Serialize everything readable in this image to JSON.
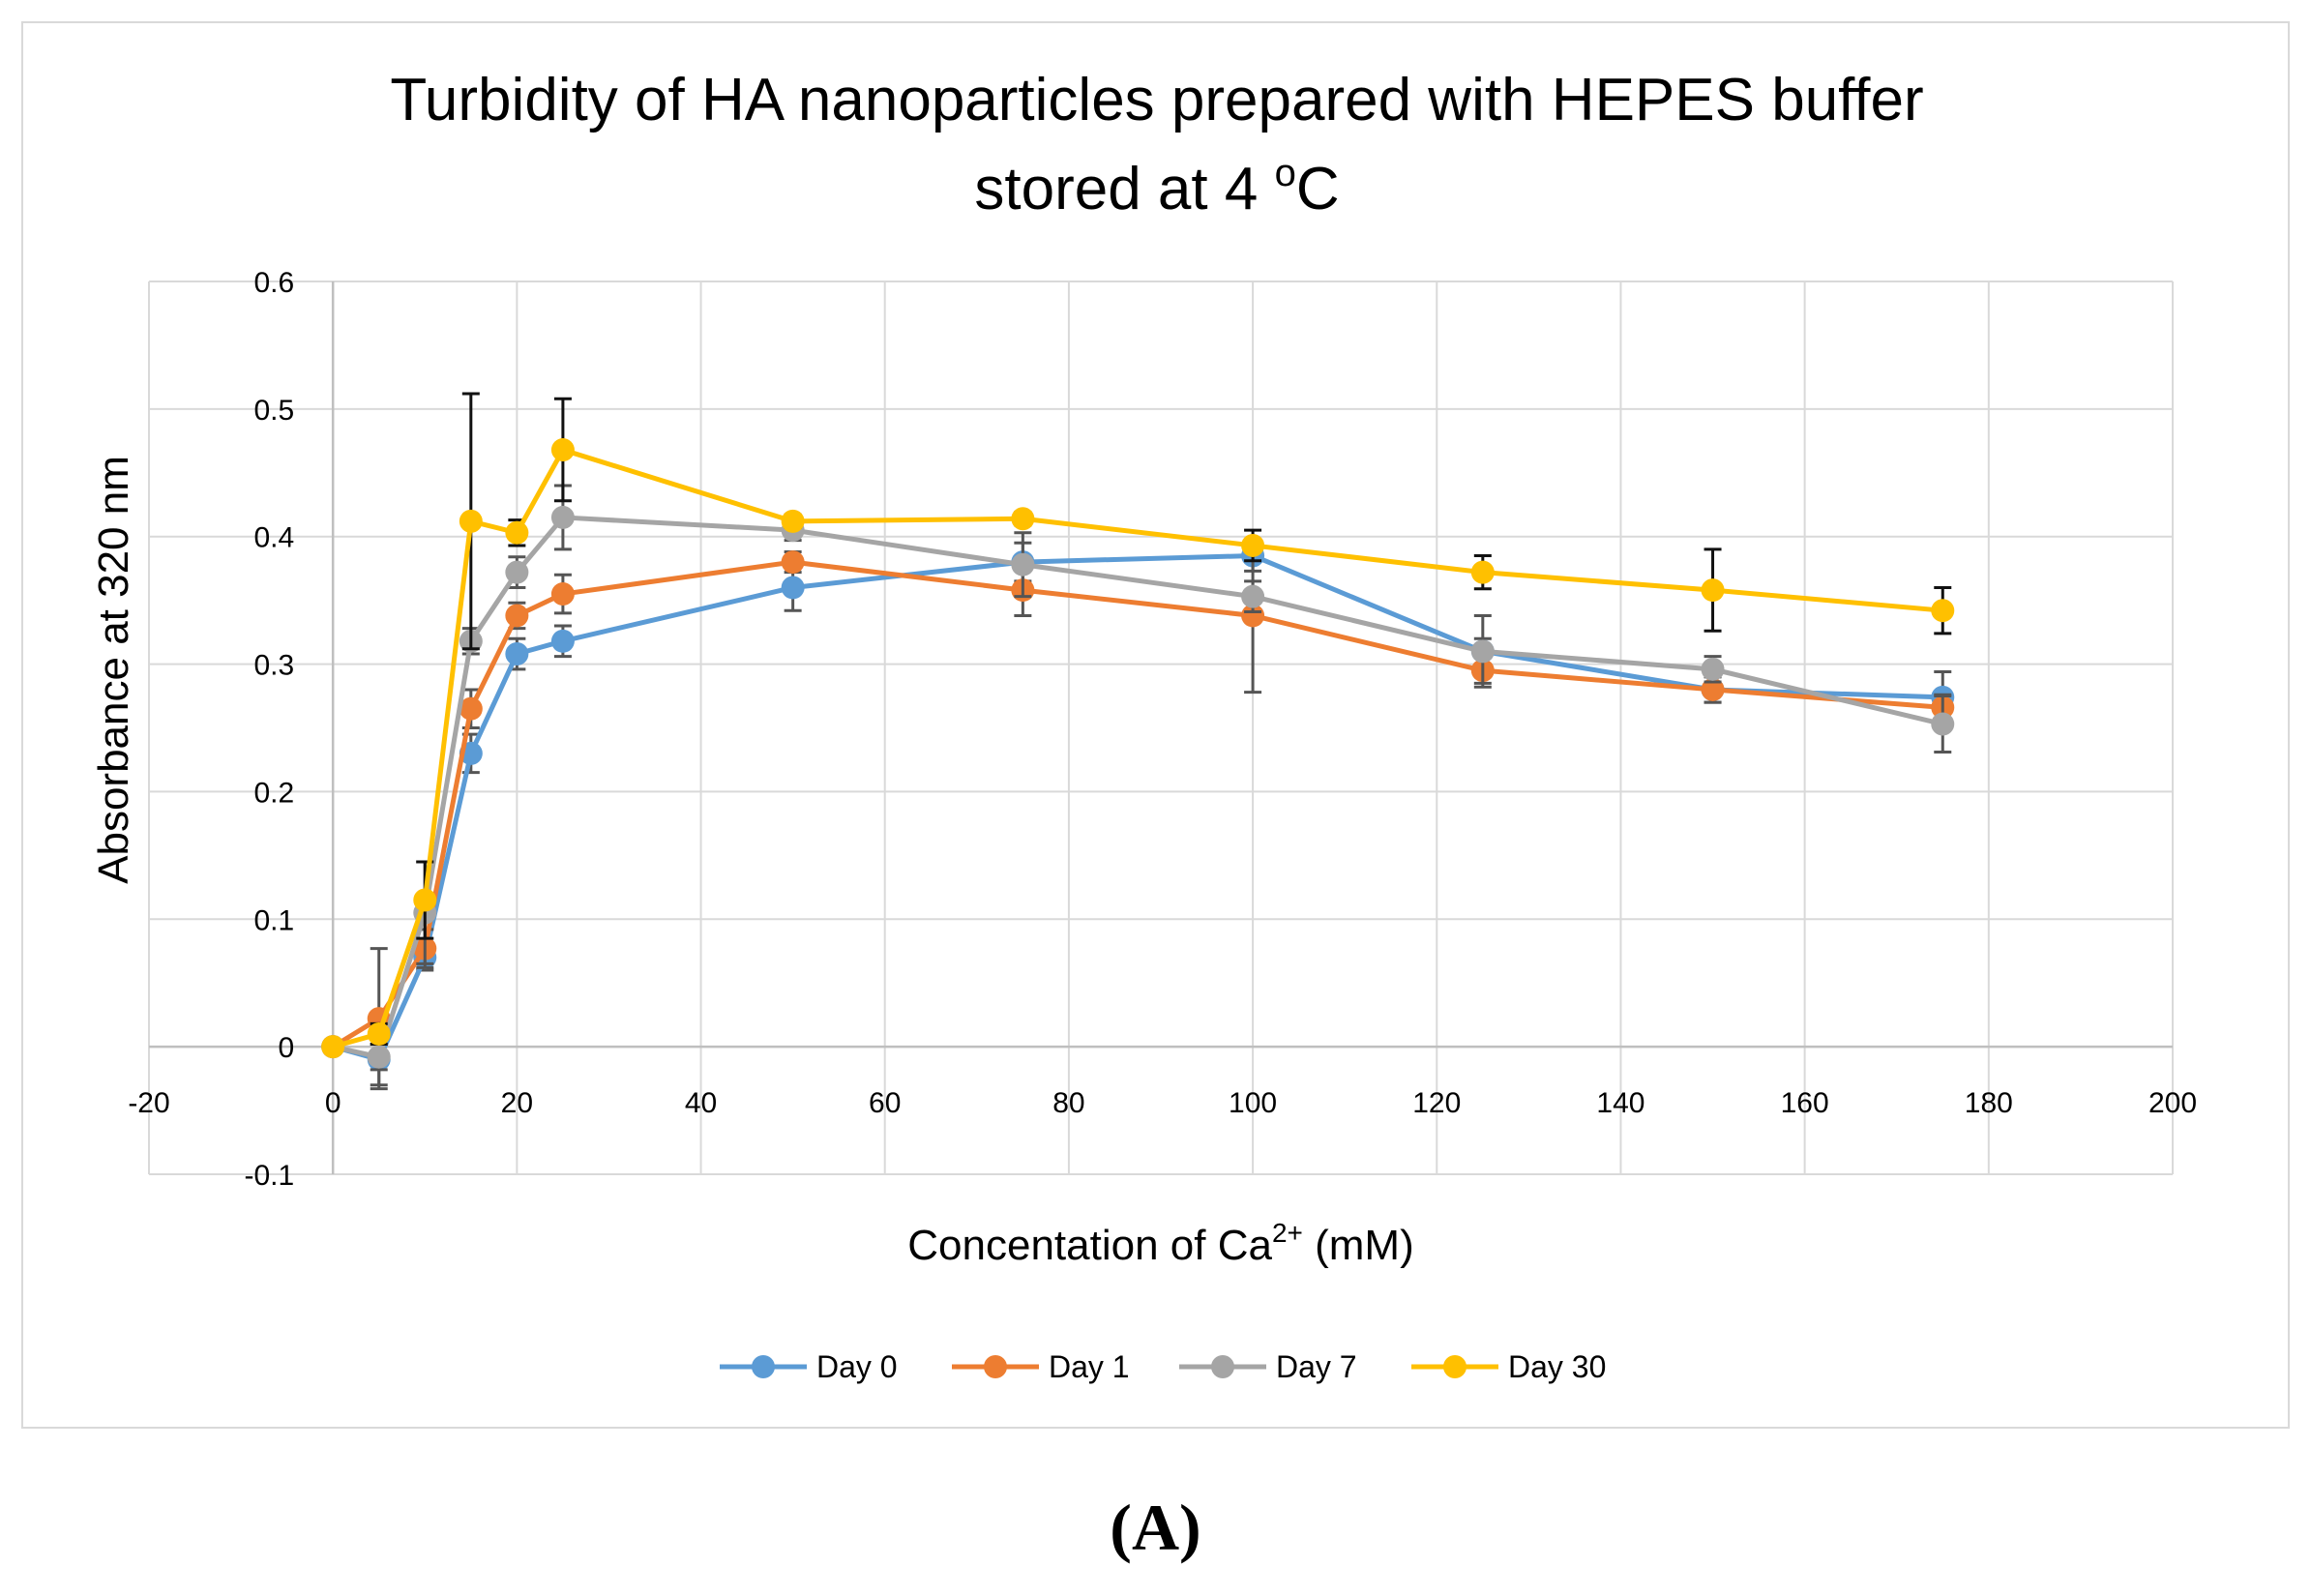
{
  "chart_data": {
    "type": "line",
    "title_line1": "Turbidity of HA nanoparticles prepared with HEPES buffer",
    "title_line2_prefix": "stored at 4 ",
    "title_line2_sup": "o",
    "title_line2_suffix": "C",
    "xlabel_prefix": "Concentation of Ca",
    "xlabel_sup": "2+",
    "xlabel_suffix": " (mM)",
    "ylabel": "Absorbance at 320 nm",
    "xlim": [
      -20,
      200
    ],
    "ylim": [
      -0.1,
      0.6
    ],
    "xticks": [
      -20,
      0,
      20,
      40,
      60,
      80,
      100,
      120,
      140,
      160,
      180,
      200
    ],
    "yticks": [
      -0.1,
      0,
      0.1,
      0.2,
      0.3,
      0.4,
      0.5,
      0.6
    ],
    "ytick_labels": [
      "-0.1",
      "0",
      "0.1",
      "0.2",
      "0.3",
      "0.4",
      "0.5",
      "0.6"
    ],
    "grid": true,
    "legend_position": "bottom",
    "x": [
      0,
      5,
      10,
      15,
      20,
      25,
      50,
      75,
      100,
      125,
      150,
      175
    ],
    "series": [
      {
        "name": "Day 0",
        "color": "#5b9bd5",
        "errcolor": "#555555",
        "values": [
          0,
          -0.01,
          0.07,
          0.23,
          0.308,
          0.318,
          0.36,
          0.38,
          0.385,
          0.31,
          0.28,
          0.274
        ],
        "errors": [
          0,
          0.02,
          0.01,
          0.015,
          0.012,
          0.012,
          0.018,
          0.015,
          0.012,
          0.01,
          0.01,
          0.02
        ]
      },
      {
        "name": "Day 1",
        "color": "#ed7d31",
        "errcolor": "#555555",
        "values": [
          0,
          0.022,
          0.077,
          0.265,
          0.338,
          0.355,
          0.38,
          0.358,
          0.338,
          0.295,
          0.28,
          0.266
        ],
        "errors": [
          0,
          0.055,
          0.015,
          0.015,
          0.01,
          0.015,
          0.008,
          0.02,
          0.06,
          0.01,
          0.01,
          0.01
        ]
      },
      {
        "name": "Day 7",
        "color": "#a5a5a5",
        "errcolor": "#555555",
        "values": [
          0,
          -0.008,
          0.105,
          0.318,
          0.372,
          0.415,
          0.405,
          0.378,
          0.353,
          0.31,
          0.296,
          0.253
        ],
        "errors": [
          0,
          0.01,
          0.04,
          0.01,
          0.012,
          0.025,
          0.008,
          0.025,
          0.012,
          0.028,
          0.01,
          0.022
        ]
      },
      {
        "name": "Day 30",
        "color": "#ffc000",
        "errcolor": "#111111",
        "values": [
          0,
          0.01,
          0.115,
          0.412,
          0.403,
          0.468,
          0.412,
          0.414,
          0.393,
          0.372,
          0.358,
          0.342
        ],
        "errors": [
          0,
          0.008,
          0.03,
          0.1,
          0.01,
          0.04,
          0.005,
          0.005,
          0.012,
          0.013,
          0.032,
          0.018
        ]
      }
    ]
  },
  "panel_label": "(A)"
}
